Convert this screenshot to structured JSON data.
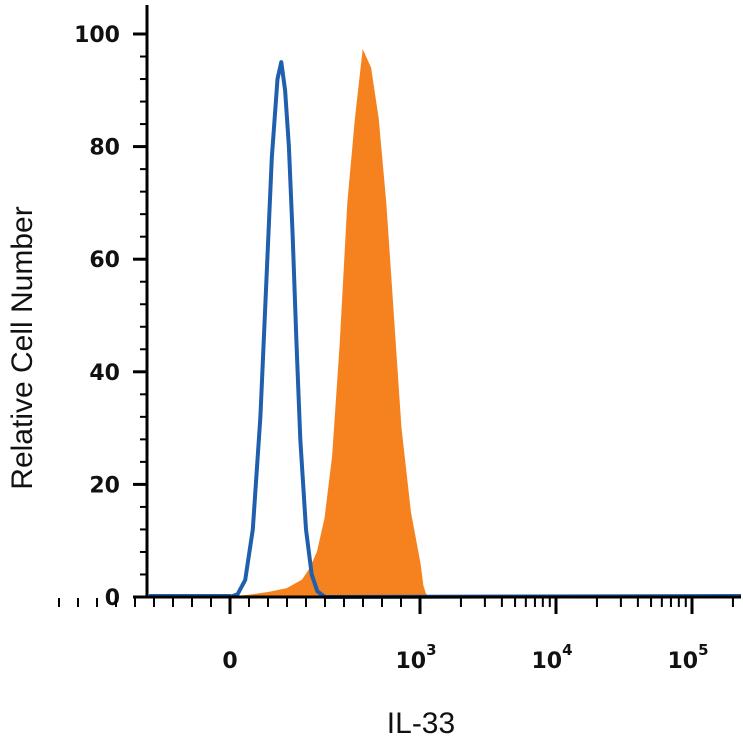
{
  "chart_data": {
    "type": "area",
    "title": "",
    "xlabel": "IL-33",
    "ylabel": "Relative Cell Number",
    "x_scale": "logicle",
    "ylim": [
      0,
      100
    ],
    "y_ticks": [
      "0",
      "20",
      "40",
      "60",
      "80",
      "100"
    ],
    "x_ticks": [
      {
        "value": 0,
        "base": "0",
        "exp": ""
      },
      {
        "value": 1000,
        "base": "10",
        "exp": "3"
      },
      {
        "value": 10000,
        "base": "10",
        "exp": "4"
      },
      {
        "value": 100000,
        "base": "10",
        "exp": "5"
      }
    ],
    "grid": false,
    "legend": "none",
    "series": [
      {
        "style": "filled",
        "color": "#f5821f",
        "x": [
          0,
          100,
          200,
          300,
          380,
          420,
          460,
          500,
          540,
          580,
          620,
          660,
          700,
          740,
          780,
          820,
          860,
          900,
          950,
          1000,
          1050,
          1100,
          1200
        ],
        "values": [
          0,
          0.3,
          0.8,
          1.5,
          3,
          5,
          8,
          14,
          25,
          45,
          70,
          85,
          97,
          94,
          85,
          70,
          50,
          30,
          15,
          6,
          2,
          0.5,
          0
        ]
      },
      {
        "style": "outline",
        "color": "#1f5fad",
        "x": [
          0,
          40,
          80,
          120,
          160,
          190,
          220,
          250,
          270,
          290,
          310,
          330,
          350,
          370,
          400,
          430,
          460,
          500
        ],
        "values": [
          0,
          0.5,
          3,
          12,
          32,
          55,
          78,
          92,
          95,
          90,
          80,
          64,
          45,
          28,
          12,
          4,
          1,
          0
        ]
      }
    ]
  }
}
